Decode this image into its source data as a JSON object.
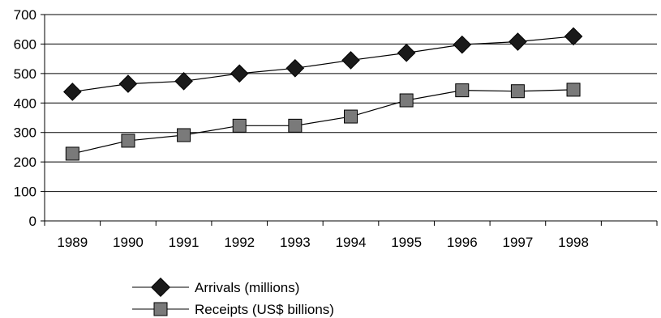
{
  "chart_data": {
    "type": "line",
    "categories": [
      "1989",
      "1990",
      "1991",
      "1992",
      "1993",
      "1994",
      "1995",
      "1996",
      "1997",
      "1998"
    ],
    "ylim": [
      0,
      700
    ],
    "yticks": [
      0,
      100,
      200,
      300,
      400,
      500,
      600,
      700
    ],
    "grid": true,
    "legend_position": "bottom",
    "series": [
      {
        "name": "Arrivals (millions)",
        "marker": "diamond",
        "values": [
          438,
          465,
          474,
          500,
          518,
          545,
          570,
          598,
          608,
          626
        ]
      },
      {
        "name": "Receipts (US$ billions)",
        "marker": "square",
        "values": [
          228,
          272,
          291,
          323,
          323,
          354,
          409,
          443,
          440,
          445
        ]
      }
    ]
  },
  "colors": {
    "line": "#000000",
    "diamond_marker": "#1a1a1a",
    "square_marker": "#7a7a7a",
    "gridline": "#000000"
  }
}
